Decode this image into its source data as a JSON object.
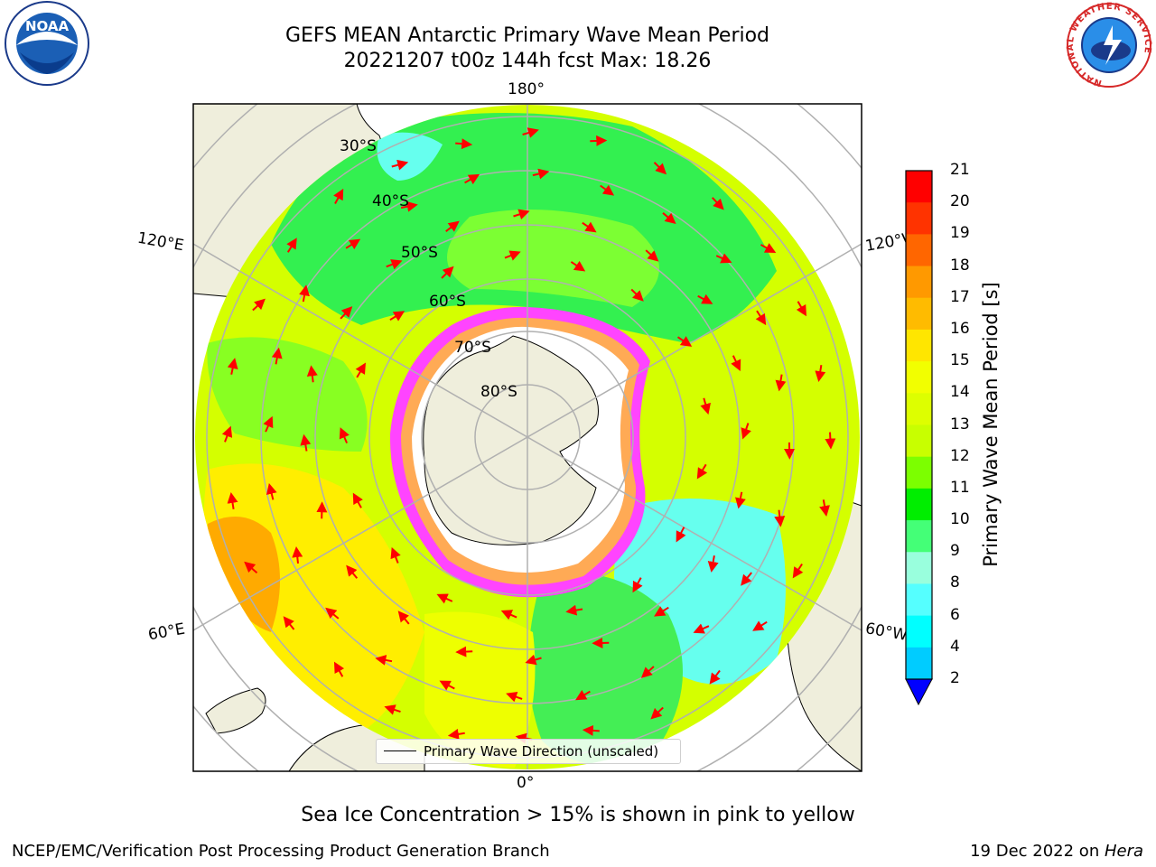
{
  "title": {
    "line1": "GEFS MEAN Antarctic Primary Wave Mean Period",
    "line2": "20221207 t00z 144h fcst   Max: 18.26"
  },
  "map": {
    "projection": "south-polar-stereographic",
    "longitude_labels": {
      "top": "180°",
      "bottom": "0°",
      "left_upper": "120°E",
      "left_lower": "60°E",
      "right_upper": "120°W",
      "right_lower": "60°W"
    },
    "latitude_labels": [
      "30°S",
      "40°S",
      "50°S",
      "60°S",
      "70°S",
      "80°S"
    ],
    "legend_text": "Primary Wave Direction (unscaled)",
    "arrow_color": "#ff0000",
    "land_color": "#efeedc",
    "sea_ice_colors": [
      "#ff33ff",
      "#ff99cc",
      "#ffcc66"
    ]
  },
  "colorbar": {
    "label": "Primary Wave Mean Period [s]",
    "ticks": [
      "21",
      "20",
      "19",
      "18",
      "17",
      "16",
      "15",
      "14",
      "13",
      "12",
      "11",
      "10",
      "9",
      "8",
      "6",
      "4",
      "2"
    ],
    "colors": [
      "#ff0000",
      "#ff3300",
      "#ff6600",
      "#ff9900",
      "#ffbb00",
      "#ffe600",
      "#f2ff00",
      "#ddff00",
      "#c8ff00",
      "#7cff00",
      "#00ee00",
      "#44ff77",
      "#99ffdd",
      "#55ffff",
      "#00ffff",
      "#00ccff",
      "#0066ff"
    ],
    "under_color": "#0000ff"
  },
  "notes": {
    "sea_ice": "Sea Ice Concentration > 15% is shown in pink to yellow",
    "producer": "NCEP/EMC/Verification Post Processing Product Generation Branch",
    "date": "19 Dec 2022 on ",
    "machine": "Hera"
  },
  "logos": {
    "left": "NOAA",
    "right_text": "NATIONAL WEATHER SERVICE"
  }
}
